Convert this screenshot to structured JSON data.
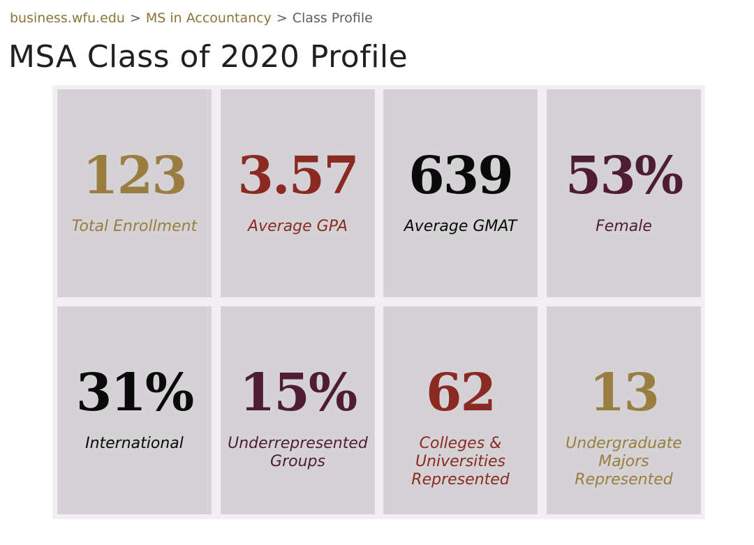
{
  "breadcrumb": {
    "site": "business.wfu.edu",
    "sep1": ">",
    "program": "MS in Accountancy",
    "sep2": ">",
    "current": "Class Profile"
  },
  "page": {
    "title": "MSA Class of 2020 Profile"
  },
  "colors": {
    "gold": "#9a7d41",
    "red": "#8a2a22",
    "black": "#0a0a0a",
    "plum": "#4e1c33",
    "tile_background": "#d4d2d4",
    "panel_background": "#f1eff1"
  },
  "stats": [
    {
      "value": "123",
      "label": "Total Enrollment",
      "color": "#9a7d41"
    },
    {
      "value": "3.57",
      "label": "Average GPA",
      "color": "#8a2a22"
    },
    {
      "value": "639",
      "label": "Average GMAT",
      "color": "#0a0a0a"
    },
    {
      "value": "53%",
      "label": "Female",
      "color": "#4e1c33"
    },
    {
      "value": "31%",
      "label": "International",
      "color": "#0a0a0a"
    },
    {
      "value": "15%",
      "label": "Underrepresented\nGroups",
      "color": "#4e1c33"
    },
    {
      "value": "62",
      "label": "Colleges &\nUniversities\nRepresented",
      "color": "#8a2a22"
    },
    {
      "value": "13",
      "label": "Undergraduate\nMajors\nRepresented",
      "color": "#9a7d41"
    }
  ]
}
